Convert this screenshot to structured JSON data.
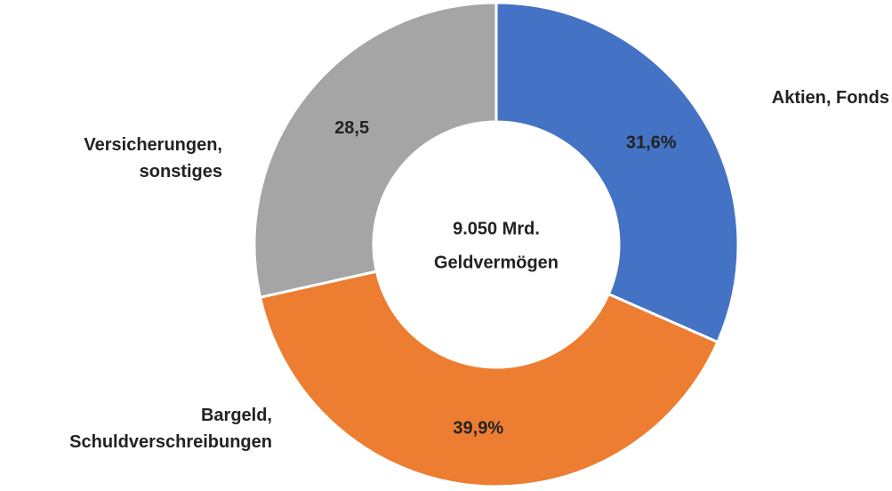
{
  "chart_data": {
    "type": "donut",
    "categories": [
      "Aktien, Fonds",
      "Bargeld, Schuldverschreibungen",
      "Versicherungen, sonstiges"
    ],
    "values": [
      31.6,
      39.9,
      28.5
    ],
    "value_labels": [
      "31,6%",
      "39,9%",
      "28,5"
    ],
    "colors": [
      "#4472c4",
      "#ed7d31",
      "#a5a5a5"
    ],
    "center_label": [
      "9.050 Mrd.",
      "Geldvermögen"
    ]
  }
}
